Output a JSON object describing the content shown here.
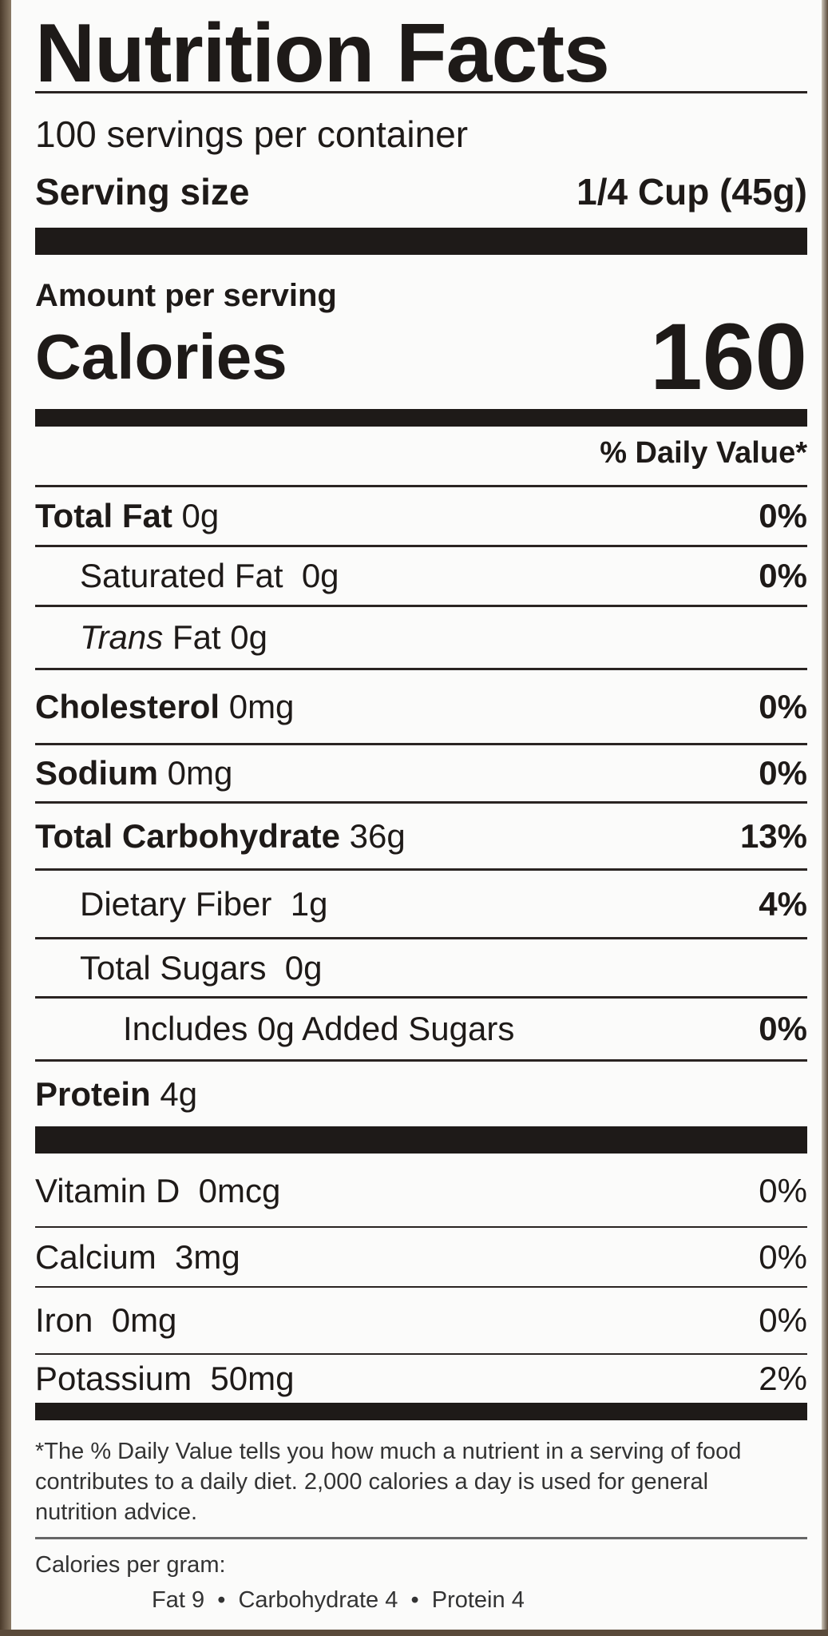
{
  "title": "Nutrition Facts",
  "servings_per_container": "100 servings per container",
  "serving_size_label": "Serving size",
  "serving_size_value": "1/4 Cup (45g)",
  "amount_per_serving": "Amount per serving",
  "calories_label": "Calories",
  "calories_value": "160",
  "daily_value_header": "% Daily Value*",
  "nutrients": [
    {
      "bold": "Total Fat",
      "amount": " 0g",
      "dv": "0%"
    },
    {
      "pre": "Saturated Fat",
      "amount": "  0g",
      "dv": "0%"
    },
    {
      "italic": "Trans",
      "amount": " Fat 0g",
      "dv": ""
    },
    {
      "bold": "Cholesterol",
      "amount": " 0mg",
      "dv": "0%"
    },
    {
      "bold": "Sodium",
      "amount": " 0mg",
      "dv": "0%"
    },
    {
      "bold": "Total Carbohydrate",
      "amount": " 36g",
      "dv": "13%"
    },
    {
      "pre": "Dietary Fiber",
      "amount": "  1g",
      "dv": "4%"
    },
    {
      "pre": "Total Sugars",
      "amount": "  0g",
      "dv": ""
    },
    {
      "pre": "Includes 0g Added Sugars",
      "amount": "",
      "dv": "0%"
    },
    {
      "bold": "Protein",
      "amount": " 4g",
      "dv": ""
    }
  ],
  "vitamins": [
    {
      "label": "Vitamin D  0mcg",
      "dv": "0%"
    },
    {
      "label": "Calcium  3mg",
      "dv": "0%"
    },
    {
      "label": "Iron  0mg",
      "dv": "0%"
    },
    {
      "label": "Potassium  50mg",
      "dv": "2%"
    }
  ],
  "footnote": "*The % Daily Value tells you how much a nutrient in a serving of food contributes to a daily diet. 2,000 calories a day is used for general nutrition advice.",
  "calories_per_gram_label": "Calories per gram:",
  "calories_per_gram_values": "Fat 9  •  Carbohydrate 4  •  Protein 4"
}
